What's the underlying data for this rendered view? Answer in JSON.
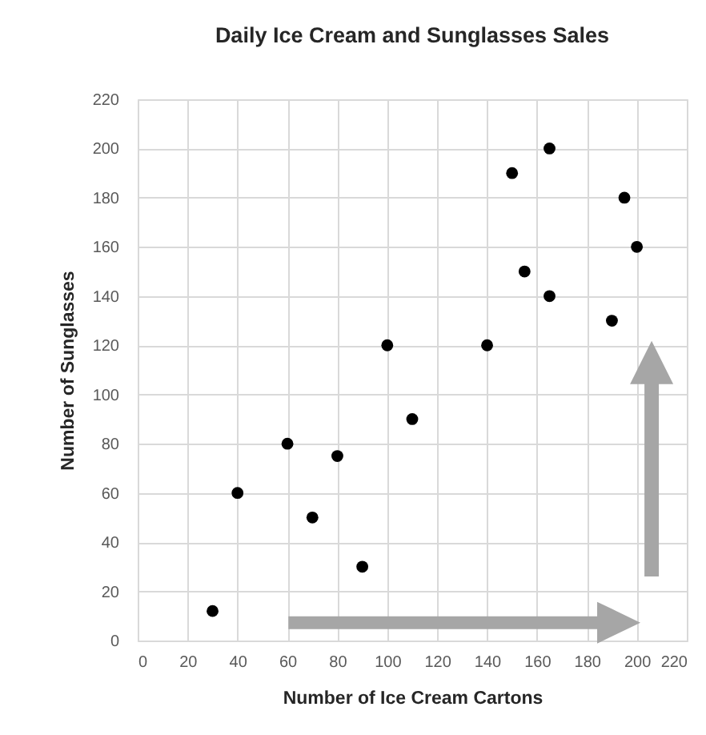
{
  "chart_data": {
    "type": "scatter",
    "title": "Daily Ice Cream and Sunglasses Sales",
    "xlabel": "Number of Ice Cream Cartons",
    "ylabel": "Number of Sunglasses",
    "x": [
      30,
      40,
      60,
      70,
      80,
      90,
      100,
      110,
      140,
      150,
      155,
      165,
      165,
      190,
      195,
      200
    ],
    "values": [
      12,
      60,
      80,
      50,
      75,
      30,
      120,
      90,
      120,
      190,
      150,
      200,
      140,
      130,
      180,
      160
    ],
    "color": "#000000",
    "marker": "circle",
    "grid": true,
    "xlim": [
      0,
      220
    ],
    "ylim": [
      0,
      220
    ],
    "xticks": [
      0,
      20,
      40,
      60,
      80,
      100,
      120,
      140,
      160,
      180,
      200,
      220
    ],
    "yticks": [
      0,
      20,
      40,
      60,
      80,
      100,
      120,
      140,
      160,
      180,
      200,
      220
    ]
  }
}
